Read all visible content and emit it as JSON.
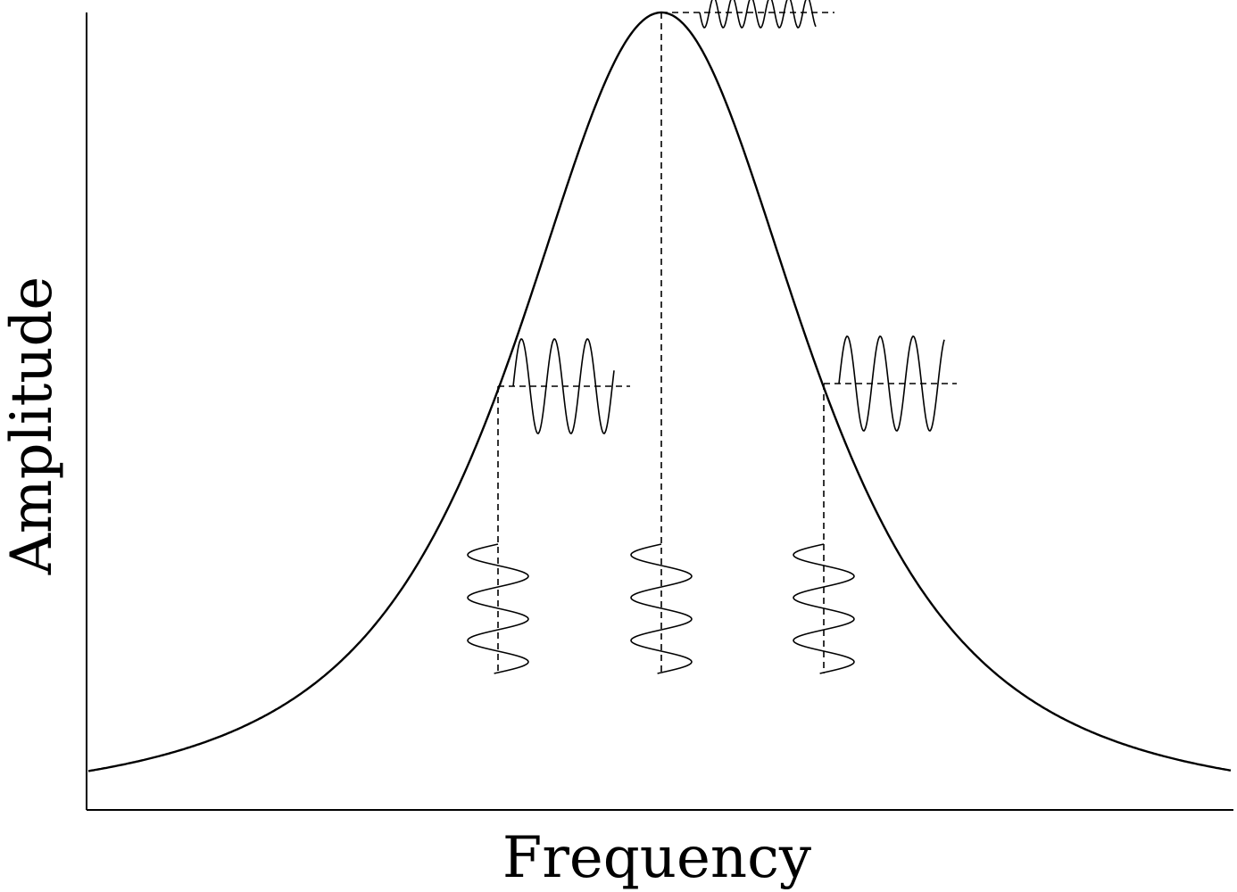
{
  "diagram": {
    "x_axis_label": "Frequency",
    "y_axis_label": "Amplitude",
    "curve_type": "bell-shaped response curve (resonance peak)",
    "markers": [
      {
        "name": "left-half-height",
        "level": 0.535
      },
      {
        "name": "peak",
        "level": 1.0
      },
      {
        "name": "right-half-height",
        "level": 0.535
      }
    ],
    "colors": {
      "background": "#ffffff",
      "ink": "#000000"
    }
  }
}
